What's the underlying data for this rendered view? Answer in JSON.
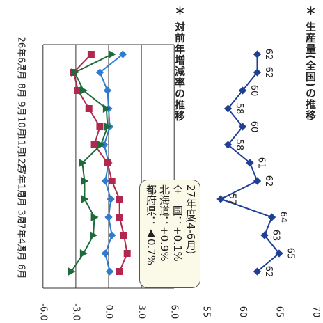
{
  "chart_data": [
    {
      "type": "line",
      "title": "＊ 生産量(全国)の推移",
      "months": [
        "26年6月",
        "7月",
        "8月",
        "9月",
        "10月",
        "11月",
        "12月",
        "27年1月",
        "2月",
        "3月",
        "27年4月",
        "5月",
        "6月"
      ],
      "axis_ticks": [
        "55",
        "60",
        "65",
        "70"
      ],
      "axis_range": [
        55,
        70
      ],
      "values": [
        62,
        62,
        60,
        58,
        60,
        58,
        61,
        62,
        57,
        64,
        63,
        65,
        62
      ],
      "value_labels": [
        "62",
        "62",
        "60",
        "58",
        "60",
        "58",
        "61",
        "62",
        "57",
        "64",
        "63",
        "65",
        "62"
      ],
      "color": "#1f3f95"
    },
    {
      "type": "line",
      "title": "＊ 対前年増減率の推移",
      "months": [
        "26年6月",
        "7月",
        "8月",
        "9月",
        "10月",
        "11月",
        "12月",
        "27年1月",
        "2月",
        "3月",
        "27年4月",
        "5月",
        "6月"
      ],
      "axis_ticks": [
        "-6.0",
        "-3.0",
        "0.0",
        "3.0",
        "6.0"
      ],
      "axis_range": [
        -6,
        6
      ],
      "series": [
        {
          "values": [
            1.3,
            -0.8,
            -0.1,
            0.0,
            0.1,
            -0.4,
            0.0,
            -0.3,
            0.2,
            0.0,
            0.3,
            -0.3,
            0.1
          ],
          "color": "#2f7bd0",
          "marker": "diamond"
        },
        {
          "values": [
            -1.6,
            -3.2,
            -2.8,
            -1.8,
            -0.8,
            -1.3,
            -0.1,
            0.3,
            1.0,
            1.0,
            1.4,
            1.7,
            1.0
          ],
          "color": "#b0284e",
          "marker": "square"
        },
        {
          "values": [
            0.3,
            -3.1,
            -2.3,
            -0.2,
            -0.1,
            -0.7,
            -2.4,
            -2.2,
            -2.2,
            -1.3,
            -1.4,
            -2.3,
            -3.4
          ],
          "color": "#1f6a3a",
          "marker": "triangle"
        }
      ],
      "annotation": {
        "lines": [
          "27年度(4-6月)",
          "全　国：+0.1%",
          "北海道：+0.9%",
          "都府県：▲0.7%"
        ]
      }
    }
  ]
}
